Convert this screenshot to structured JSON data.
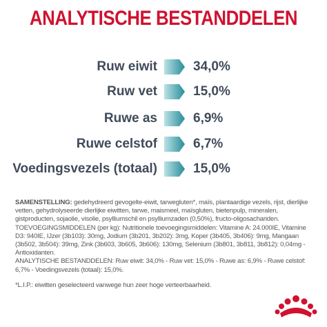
{
  "header": {
    "title": "ANALYTISCHE BESTANDDELEN"
  },
  "nutrients": [
    {
      "label": "Ruw eiwit",
      "value": "34,0%"
    },
    {
      "label": "Ruw vet",
      "value": "15,0%"
    },
    {
      "label": "Ruwe as",
      "value": "6,9%"
    },
    {
      "label": "Ruwe celstof",
      "value": "6,7%"
    },
    {
      "label": "Voedingsvezels (totaal)",
      "value": "15,0%"
    }
  ],
  "composition": {
    "heading": "SAMENSTELLING:",
    "text": " gedehydreerd gevogelte-eiwit, tarwegluten*, maïs, plantaardige vezels, rijst, dierlijke vetten, gehydrolyseerde dierlijke eiwitten, tarwe, maismeel, maïsgluten, bietenpulp, mineralen, gistproducten, sojaolie, visolie, psylliumschil en psylliumzaden (0,50%), fructo-oligosachariden."
  },
  "additives": "TOEVOEGINGSMIDDELEN (per kg): Nutritionele toevoegingsmiddelen: Vitamine A: 24.000IE, Vitamine D3: 940IE, IJzer (3b103): 30mg, Jodium (3b201, 3b202): 3mg, Koper (3b405, 3b406): 9mg, Mangaan (3b502, 3b504): 39mg, Zink (3b603, 3b605, 3b606): 130mg, Selenium (3b801, 3b811, 3b812): 0,04mg - Antioxidanten.",
  "analysis": "ANALYTISCHE BESTANDDELEN: Ruw eiwit: 34,0% - Ruw vet: 15,0% - Ruwe as: 6,9% - Ruwe celstof: 6,7% - Voedingsvezels (totaal): 15,0%.",
  "footnote": "*L.I.P.: eiwitten geselecteerd vanwege hun zeer hoge verteerbaarheid."
}
